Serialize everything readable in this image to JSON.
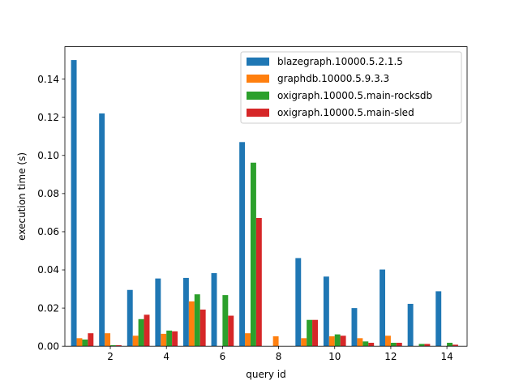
{
  "chart_data": {
    "type": "bar",
    "title": "",
    "xlabel": "query id",
    "ylabel": "execution time (s)",
    "categories": [
      1,
      2,
      3,
      4,
      5,
      6,
      7,
      8,
      9,
      10,
      11,
      12,
      13,
      14
    ],
    "xticks": [
      "2",
      "4",
      "6",
      "8",
      "10",
      "12",
      "14"
    ],
    "xtick_values": [
      2,
      4,
      6,
      8,
      10,
      12,
      14
    ],
    "yticks": [
      "0.00",
      "0.02",
      "0.04",
      "0.06",
      "0.08",
      "0.10",
      "0.12",
      "0.14"
    ],
    "ytick_values": [
      0,
      0.02,
      0.04,
      0.06,
      0.08,
      0.1,
      0.12,
      0.14
    ],
    "ylim": [
      0,
      0.157
    ],
    "xlim": [
      0.38,
      14.72
    ],
    "legend_position": "top-right",
    "series": [
      {
        "name": "blazegraph.10000.5.2.1.5",
        "color": "#1f77b4",
        "values": [
          0.15,
          0.122,
          0.0295,
          0.0355,
          0.0358,
          0.0383,
          0.107,
          0.0,
          0.0462,
          0.0365,
          0.02,
          0.0402,
          0.0222,
          0.0288
        ]
      },
      {
        "name": "graphdb.10000.5.9.3.3",
        "color": "#ff7f0e",
        "values": [
          0.0042,
          0.0068,
          0.0055,
          0.0065,
          0.0235,
          0.0,
          0.0068,
          0.0052,
          0.0042,
          0.0052,
          0.0042,
          0.0055,
          0.0,
          0.0
        ]
      },
      {
        "name": "oxigraph.10000.5.main-rocksdb",
        "color": "#2ca02c",
        "values": [
          0.0035,
          0.0005,
          0.0142,
          0.0082,
          0.0272,
          0.0268,
          0.0962,
          0.0,
          0.0138,
          0.0062,
          0.0025,
          0.0018,
          0.0012,
          0.0018
        ]
      },
      {
        "name": "oxigraph.10000.5.main-sled",
        "color": "#d62728",
        "values": [
          0.0068,
          0.0005,
          0.0165,
          0.0078,
          0.0192,
          0.016,
          0.0672,
          0.0,
          0.0138,
          0.0055,
          0.0018,
          0.0018,
          0.0012,
          0.0008
        ]
      }
    ]
  }
}
